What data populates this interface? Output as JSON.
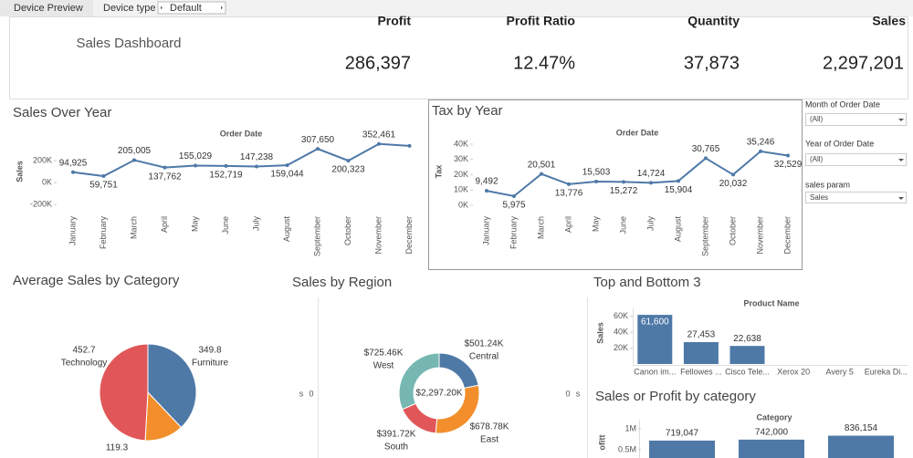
{
  "toolbar": {
    "tab": "Device Preview",
    "device_type_label": "Device type",
    "device_type_value": "Default"
  },
  "header": {
    "title": "Sales Dashboard"
  },
  "kpis": [
    {
      "label": "Profit",
      "value": "286,397"
    },
    {
      "label": "Profit Ratio",
      "value": "12.47%"
    },
    {
      "label": "Quantity",
      "value": "37,873"
    },
    {
      "label": "Sales",
      "value": "2,297,201"
    }
  ],
  "filters": [
    {
      "label": "Month of Order Date",
      "value": "(All)"
    },
    {
      "label": "Year of Order Date",
      "value": "(All)"
    },
    {
      "label": "sales param",
      "value": "Sales"
    }
  ],
  "chart_data": [
    {
      "type": "line",
      "title": "Sales Over Year",
      "x_label": "Order Date",
      "y_label": "Sales",
      "color": "#4e79a7",
      "categories": [
        "January",
        "February",
        "March",
        "April",
        "May",
        "June",
        "July",
        "August",
        "September",
        "October",
        "November",
        "December"
      ],
      "values": [
        94925,
        59751,
        205005,
        137762,
        155029,
        152719,
        147238,
        159044,
        307650,
        200323,
        352461,
        335000
      ],
      "value_labels": [
        "94,925",
        "59,751",
        "205,005",
        "137,762",
        "155,029",
        "152,719",
        "147,238",
        "159,044",
        "307,650",
        "200,323",
        "352,461",
        null
      ],
      "ylim": [
        -280000,
        450000
      ],
      "yticks": [
        {
          "value": 200000,
          "label": "200K"
        },
        {
          "value": 0,
          "label": "0K"
        },
        {
          "value": -200000,
          "label": "-200K"
        }
      ]
    },
    {
      "type": "line",
      "title": "Tax by Year",
      "x_label": "Order Date",
      "y_label": "Tax",
      "color": "#4e79a7",
      "categories": [
        "January",
        "February",
        "March",
        "April",
        "May",
        "June",
        "July",
        "August",
        "September",
        "October",
        "November",
        "December"
      ],
      "values": [
        9492,
        5975,
        20501,
        13776,
        15503,
        15272,
        14724,
        15904,
        30765,
        20032,
        35246,
        32529
      ],
      "value_labels": [
        "9,492",
        "5,975",
        "20,501",
        "13,776",
        "15,503",
        "15,272",
        "14,724",
        "15,904",
        "30,765",
        "20,032",
        "35,246",
        "32,529"
      ],
      "ylim": [
        0,
        42000
      ],
      "yticks": [
        {
          "value": 0,
          "label": "0K"
        },
        {
          "value": 10000,
          "label": "10K"
        },
        {
          "value": 20000,
          "label": "20K"
        },
        {
          "value": 30000,
          "label": "30K"
        },
        {
          "value": 40000,
          "label": "40K"
        }
      ]
    },
    {
      "type": "pie",
      "title": "Average Sales by Category",
      "categories": [
        "Furniture",
        null,
        "Technology"
      ],
      "values": [
        349.8,
        119.3,
        452.7
      ],
      "colors": [
        "#4e79a7",
        "#f28e2b",
        "#e15759"
      ]
    },
    {
      "type": "donut",
      "title": "Sales by Region",
      "categories": [
        "Central",
        "East",
        "South",
        "West"
      ],
      "values": [
        501240,
        678780,
        391720,
        725460
      ],
      "value_labels": [
        "$501.24K",
        "$678.78K",
        "$391.72K",
        "$725.46K"
      ],
      "center_label": "$2,297.20K",
      "colors": [
        "#4e79a7",
        "#f28e2b",
        "#e15759",
        "#76b7b2"
      ],
      "edge_labels": [
        "s",
        "0",
        "0",
        "s"
      ]
    },
    {
      "type": "bar",
      "title": "Top and Bottom 3",
      "x_label": "Product Name",
      "y_label": "Sales",
      "color": "#4e79a7",
      "categories": [
        "Canon im...",
        "Fellowes ...",
        "Cisco Tele...",
        "Xerox 20",
        "Avery 5",
        "Eureka Di..."
      ],
      "values": [
        61600,
        27453,
        22638,
        null,
        null,
        null
      ],
      "value_labels": [
        "61,600",
        "27,453",
        "22,638",
        null,
        null,
        null
      ],
      "ylim": [
        0,
        70000
      ],
      "yticks": [
        {
          "value": 20000,
          "label": "20K"
        },
        {
          "value": 40000,
          "label": "40K"
        },
        {
          "value": 60000,
          "label": "60K"
        }
      ]
    },
    {
      "type": "bar",
      "title": "Sales or Profit by category",
      "x_label": "Category",
      "y_label": "ofitt",
      "color": "#4e79a7",
      "categories": [
        null,
        null,
        null
      ],
      "values": [
        719047,
        742000,
        836154
      ],
      "value_labels": [
        "719,047",
        "742,000",
        "836,154"
      ],
      "ylim": [
        0,
        1250000
      ],
      "yticks": [
        {
          "value": 500000,
          "label": "0.5M"
        },
        {
          "value": 1000000,
          "label": "1M"
        }
      ]
    }
  ]
}
